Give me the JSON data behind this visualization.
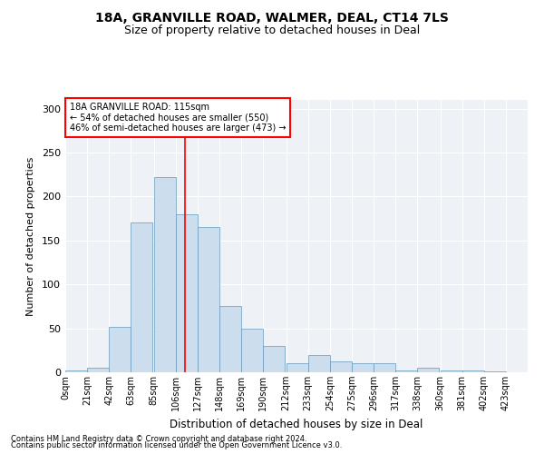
{
  "title1": "18A, GRANVILLE ROAD, WALMER, DEAL, CT14 7LS",
  "title2": "Size of property relative to detached houses in Deal",
  "xlabel": "Distribution of detached houses by size in Deal",
  "ylabel": "Number of detached properties",
  "bar_color": "#ccdded",
  "bar_edge_color": "#6699bb",
  "bg_color": "#eef2f7",
  "annotation_box_text": "18A GRANVILLE ROAD: 115sqm\n← 54% of detached houses are smaller (550)\n46% of semi-detached houses are larger (473) →",
  "annotation_box_color": "white",
  "annotation_box_edge": "red",
  "vline_x": 115,
  "vline_color": "red",
  "footer1": "Contains HM Land Registry data © Crown copyright and database right 2024.",
  "footer2": "Contains public sector information licensed under the Open Government Licence v3.0.",
  "categories": [
    "0sqm",
    "21sqm",
    "42sqm",
    "63sqm",
    "85sqm",
    "106sqm",
    "127sqm",
    "148sqm",
    "169sqm",
    "190sqm",
    "212sqm",
    "233sqm",
    "254sqm",
    "275sqm",
    "296sqm",
    "317sqm",
    "338sqm",
    "360sqm",
    "381sqm",
    "402sqm",
    "423sqm"
  ],
  "bin_edges": [
    0,
    21,
    42,
    63,
    85,
    106,
    127,
    148,
    169,
    190,
    212,
    233,
    254,
    275,
    296,
    317,
    338,
    360,
    381,
    402,
    423
  ],
  "bar_heights": [
    2,
    5,
    52,
    170,
    222,
    180,
    165,
    75,
    50,
    30,
    10,
    20,
    12,
    10,
    10,
    2,
    5,
    2,
    2,
    1,
    0
  ],
  "ylim": [
    0,
    310
  ],
  "yticks": [
    0,
    50,
    100,
    150,
    200,
    250,
    300
  ]
}
